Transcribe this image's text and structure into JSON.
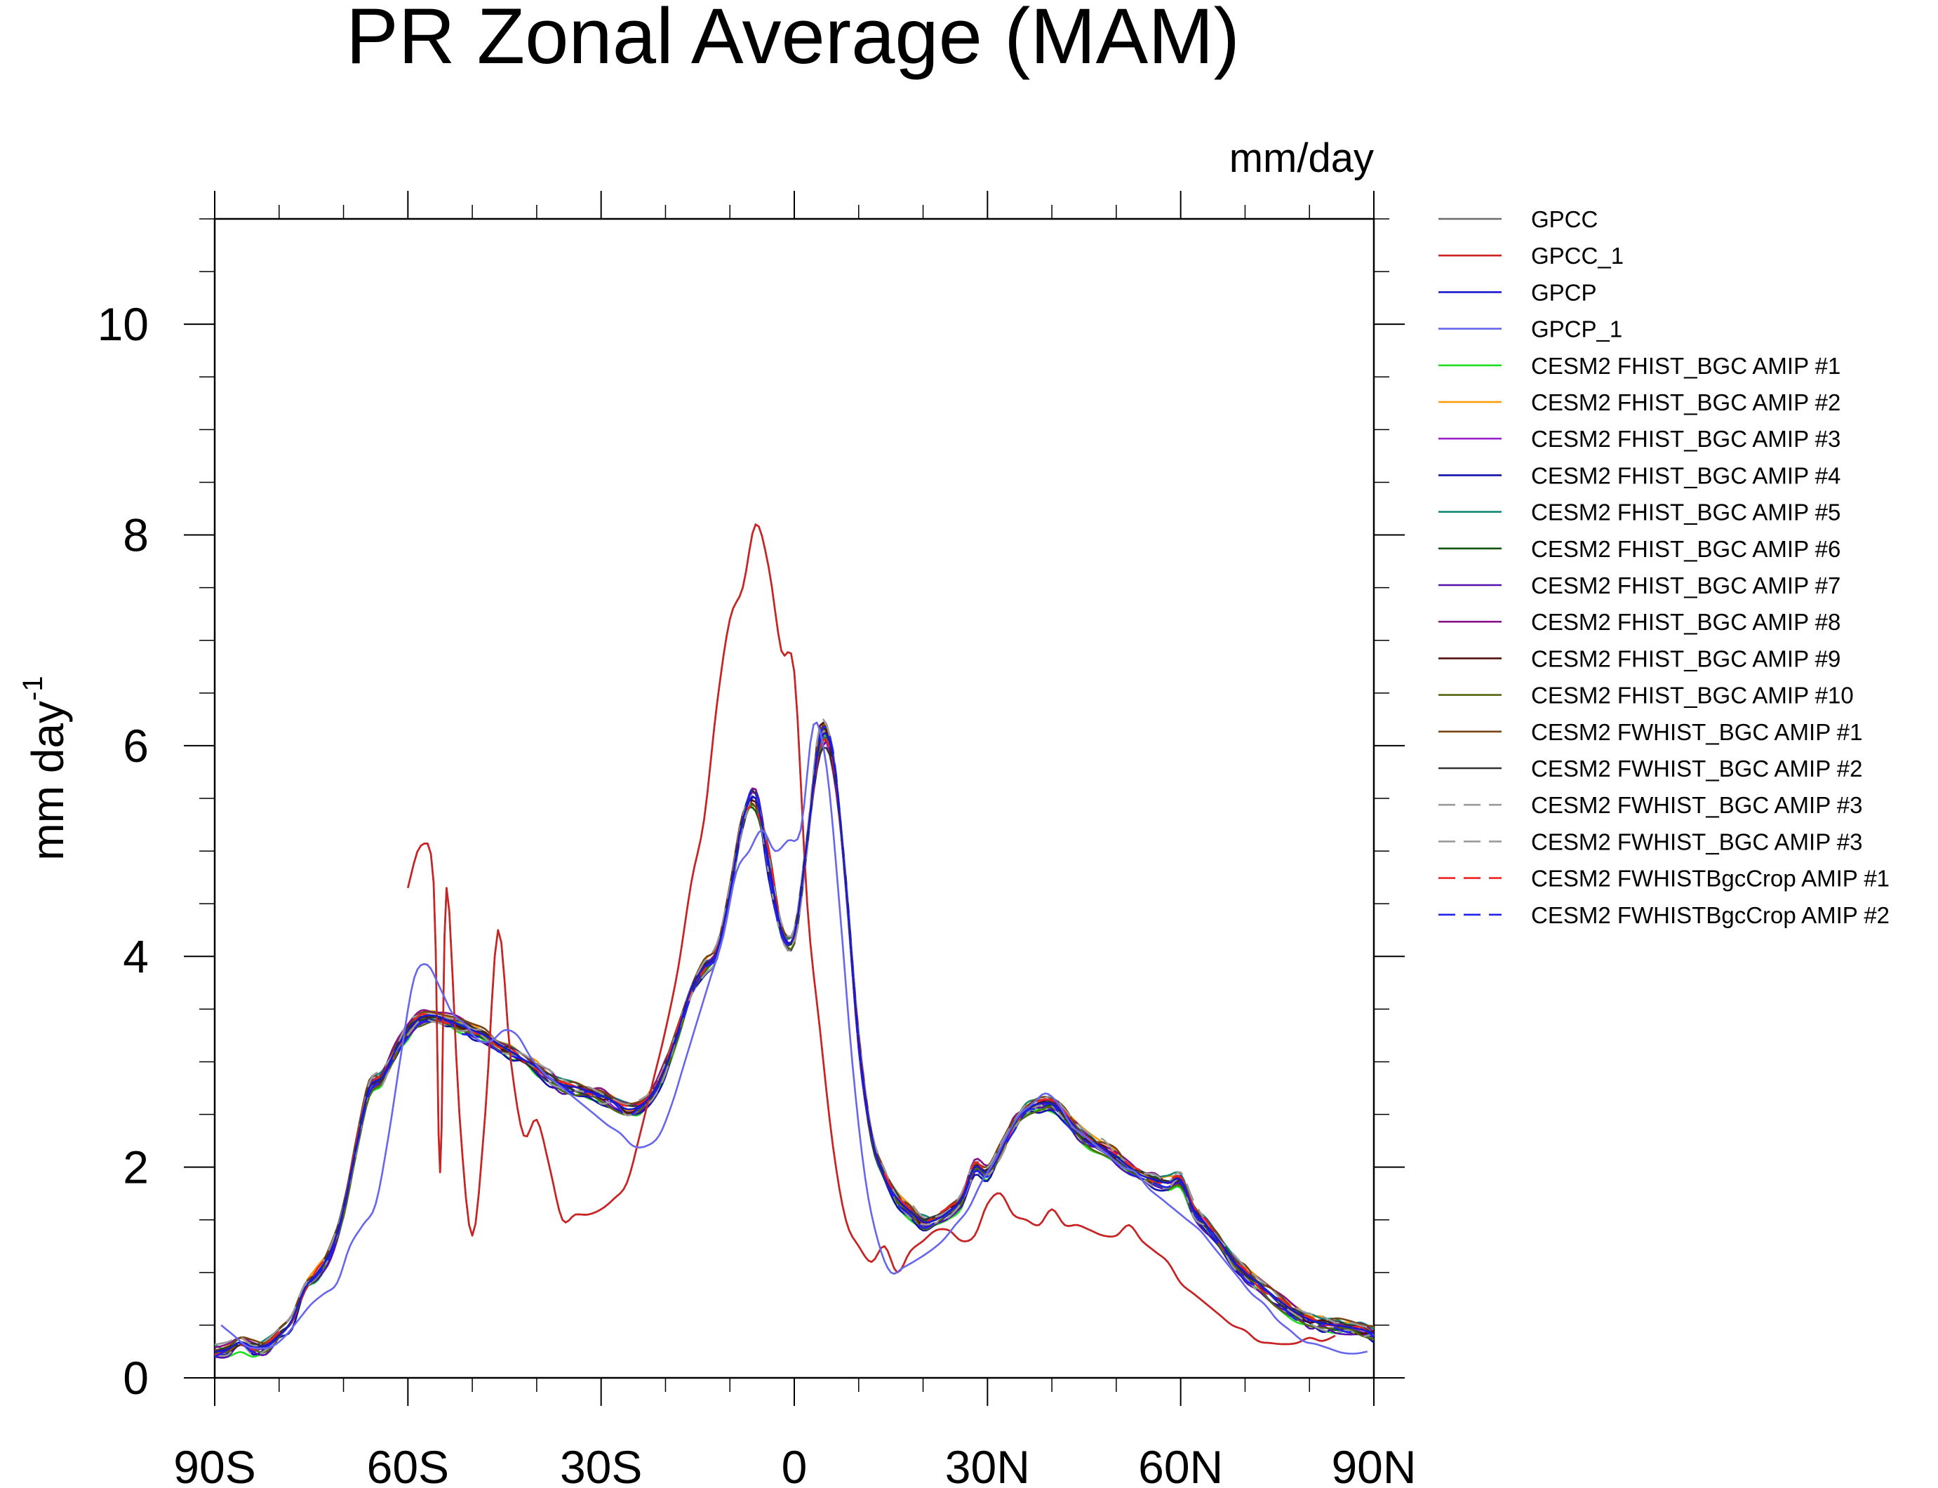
{
  "chart_data": {
    "type": "line",
    "title": "PR Zonal Average (MAM)",
    "units_label": "mm/day",
    "ylabel": "mm day",
    "ylabel_superscript": "-1",
    "xlim": [
      -90,
      90
    ],
    "ylim": [
      0,
      11
    ],
    "xticks": [
      {
        "value": -90,
        "label": "90S"
      },
      {
        "value": -60,
        "label": "60S"
      },
      {
        "value": -30,
        "label": "30S"
      },
      {
        "value": 0,
        "label": "0"
      },
      {
        "value": 30,
        "label": "30N"
      },
      {
        "value": 60,
        "label": "60N"
      },
      {
        "value": 90,
        "label": "90N"
      }
    ],
    "yticks": [
      {
        "value": 0,
        "label": "0"
      },
      {
        "value": 2,
        "label": "2"
      },
      {
        "value": 4,
        "label": "4"
      },
      {
        "value": 6,
        "label": "6"
      },
      {
        "value": 8,
        "label": "8"
      },
      {
        "value": 10,
        "label": "10"
      }
    ],
    "grid": false,
    "legend_position": "right",
    "series": [
      {
        "name": "GPCC",
        "color": "#6b6b6b",
        "dash": "solid",
        "x": [
          -60,
          -58,
          -56,
          -55,
          -54,
          -52,
          -50,
          -48,
          -46,
          -44,
          -42,
          -40,
          -38,
          -36,
          -34,
          -32,
          -30,
          -28,
          -26,
          -24,
          -22,
          -20,
          -18,
          -16,
          -14,
          -12,
          -10,
          -8,
          -6,
          -4,
          -2,
          0,
          2,
          4,
          6,
          8,
          10,
          12,
          14,
          16,
          18,
          20,
          22,
          24,
          26,
          28,
          30,
          32,
          34,
          36,
          38,
          40,
          42,
          44,
          46,
          48,
          50,
          52,
          54,
          56,
          58,
          60,
          62,
          64,
          66,
          68,
          70,
          72,
          74,
          76,
          78,
          80,
          82,
          84
        ],
        "y": [
          4.65,
          5.05,
          4.7,
          1.95,
          4.65,
          2.5,
          1.35,
          2.5,
          4.25,
          3.0,
          2.3,
          2.45,
          2.0,
          1.5,
          1.55,
          1.55,
          1.6,
          1.7,
          1.85,
          2.3,
          2.8,
          3.3,
          3.9,
          4.7,
          5.3,
          6.4,
          7.2,
          7.5,
          8.1,
          7.7,
          6.9,
          6.7,
          4.5,
          3.3,
          2.2,
          1.5,
          1.25,
          1.1,
          1.25,
          1.0,
          1.2,
          1.3,
          1.4,
          1.4,
          1.3,
          1.35,
          1.65,
          1.75,
          1.55,
          1.5,
          1.45,
          1.6,
          1.45,
          1.45,
          1.4,
          1.35,
          1.35,
          1.45,
          1.3,
          1.2,
          1.1,
          0.9,
          0.8,
          0.7,
          0.6,
          0.5,
          0.45,
          0.35,
          0.33,
          0.32,
          0.33,
          0.38,
          0.35,
          0.4
        ]
      },
      {
        "name": "GPCC_1",
        "color": "#cc2222",
        "dash": "solid",
        "x": [
          -60,
          -58,
          -56,
          -55,
          -54,
          -52,
          -50,
          -48,
          -46,
          -44,
          -42,
          -40,
          -38,
          -36,
          -34,
          -32,
          -30,
          -28,
          -26,
          -24,
          -22,
          -20,
          -18,
          -16,
          -14,
          -12,
          -10,
          -8,
          -6,
          -4,
          -2,
          0,
          2,
          4,
          6,
          8,
          10,
          12,
          14,
          16,
          18,
          20,
          22,
          24,
          26,
          28,
          30,
          32,
          34,
          36,
          38,
          40,
          42,
          44,
          46,
          48,
          50,
          52,
          54,
          56,
          58,
          60,
          62,
          64,
          66,
          68,
          70,
          72,
          74,
          76,
          78,
          80,
          82,
          84
        ],
        "y": [
          4.65,
          5.05,
          4.7,
          1.95,
          4.65,
          2.5,
          1.35,
          2.5,
          4.25,
          3.0,
          2.3,
          2.45,
          2.0,
          1.5,
          1.55,
          1.55,
          1.6,
          1.7,
          1.85,
          2.3,
          2.8,
          3.3,
          3.9,
          4.7,
          5.3,
          6.4,
          7.2,
          7.5,
          8.1,
          7.7,
          6.9,
          6.7,
          4.5,
          3.3,
          2.2,
          1.5,
          1.25,
          1.1,
          1.25,
          1.0,
          1.2,
          1.3,
          1.4,
          1.4,
          1.3,
          1.35,
          1.65,
          1.75,
          1.55,
          1.5,
          1.45,
          1.6,
          1.45,
          1.45,
          1.4,
          1.35,
          1.35,
          1.45,
          1.3,
          1.2,
          1.1,
          0.9,
          0.8,
          0.7,
          0.6,
          0.5,
          0.45,
          0.35,
          0.33,
          0.32,
          0.33,
          0.38,
          0.35,
          0.4
        ]
      },
      {
        "name": "GPCP",
        "color": "#1a1acc",
        "dash": "solid",
        "x": [
          -90,
          -88,
          -86,
          -84,
          -82,
          -80,
          -78,
          -76,
          -74,
          -72,
          -70,
          -68,
          -66,
          -64,
          -62,
          -60,
          -58,
          -56,
          -54,
          -52,
          -50,
          -48,
          -46,
          -44,
          -42,
          -40,
          -38,
          -36,
          -34,
          -32,
          -30,
          -28,
          -26,
          -24,
          -22,
          -20,
          -18,
          -16,
          -14,
          -12,
          -10,
          -8,
          -6,
          -4,
          -2,
          0,
          2,
          4,
          6,
          8,
          10,
          12,
          14,
          16,
          18,
          20,
          22,
          24,
          26,
          28,
          30,
          32,
          34,
          36,
          38,
          40,
          42,
          44,
          46,
          48,
          50,
          52,
          54,
          56,
          58,
          60,
          62,
          64,
          66,
          68,
          70,
          72,
          74,
          76,
          78,
          80,
          82,
          84,
          86,
          88,
          90
        ],
        "y": [
          0.25,
          0.27,
          0.34,
          0.29,
          0.31,
          0.4,
          0.55,
          0.85,
          1.0,
          1.2,
          1.6,
          2.2,
          2.75,
          2.85,
          3.1,
          3.3,
          3.42,
          3.44,
          3.4,
          3.35,
          3.3,
          3.25,
          3.17,
          3.1,
          3.02,
          2.95,
          2.85,
          2.78,
          2.76,
          2.72,
          2.68,
          2.62,
          2.55,
          2.58,
          2.7,
          2.95,
          3.3,
          3.7,
          3.9,
          4.05,
          4.6,
          5.3,
          5.5,
          4.9,
          4.25,
          4.2,
          5.1,
          6.05,
          5.9,
          4.7,
          3.2,
          2.3,
          1.9,
          1.7,
          1.58,
          1.48,
          1.5,
          1.58,
          1.7,
          2.0,
          1.95,
          2.15,
          2.4,
          2.55,
          2.6,
          2.6,
          2.5,
          2.35,
          2.25,
          2.18,
          2.1,
          2.0,
          1.92,
          1.88,
          1.85,
          1.88,
          1.6,
          1.45,
          1.3,
          1.12,
          1.0,
          0.9,
          0.8,
          0.7,
          0.62,
          0.55,
          0.52,
          0.5,
          0.48,
          0.46,
          0.42
        ]
      },
      {
        "name": "GPCP_1",
        "color": "#6666ee",
        "dash": "solid",
        "x": [
          -89,
          -87,
          -85,
          -83,
          -81,
          -79,
          -77,
          -75,
          -73,
          -71,
          -69,
          -67,
          -65,
          -63,
          -61,
          -59,
          -57,
          -55,
          -53,
          -51,
          -49,
          -47,
          -45,
          -43,
          -41,
          -39,
          -37,
          -35,
          -33,
          -31,
          -29,
          -27,
          -25,
          -23,
          -21,
          -19,
          -17,
          -15,
          -13,
          -11,
          -9,
          -7,
          -5,
          -3,
          -1,
          1,
          3,
          5,
          7,
          9,
          11,
          13,
          15,
          17,
          19,
          21,
          23,
          25,
          27,
          29,
          31,
          33,
          35,
          37,
          39,
          41,
          43,
          45,
          47,
          49,
          51,
          53,
          55,
          57,
          59,
          61,
          63,
          65,
          67,
          69,
          71,
          73,
          75,
          77,
          79,
          81,
          83,
          85,
          87,
          89
        ],
        "y": [
          0.5,
          0.4,
          0.3,
          0.28,
          0.3,
          0.4,
          0.55,
          0.7,
          0.8,
          0.9,
          1.25,
          1.45,
          1.65,
          2.3,
          3.1,
          3.8,
          3.92,
          3.7,
          3.45,
          3.35,
          3.2,
          3.2,
          3.3,
          3.25,
          3.05,
          2.9,
          2.8,
          2.7,
          2.6,
          2.5,
          2.4,
          2.32,
          2.2,
          2.2,
          2.3,
          2.6,
          3.0,
          3.4,
          3.8,
          4.2,
          4.8,
          5.0,
          5.2,
          5.0,
          5.1,
          5.2,
          6.2,
          5.8,
          4.5,
          3.0,
          1.9,
          1.3,
          1.0,
          1.05,
          1.12,
          1.2,
          1.3,
          1.45,
          1.6,
          1.85,
          2.05,
          2.3,
          2.5,
          2.6,
          2.7,
          2.6,
          2.4,
          2.3,
          2.2,
          2.1,
          2.0,
          1.95,
          1.8,
          1.7,
          1.6,
          1.5,
          1.4,
          1.25,
          1.1,
          0.95,
          0.8,
          0.7,
          0.55,
          0.45,
          0.35,
          0.32,
          0.28,
          0.24,
          0.23,
          0.25
        ]
      },
      {
        "name": "CESM2 FHIST_BGC AMIP #1",
        "color": "#22dd22",
        "dash": "solid"
      },
      {
        "name": "CESM2 FHIST_BGC AMIP #2",
        "color": "#ff9900",
        "dash": "solid"
      },
      {
        "name": "CESM2 FHIST_BGC AMIP #3",
        "color": "#9922cc",
        "dash": "solid"
      },
      {
        "name": "CESM2 FHIST_BGC AMIP #4",
        "color": "#1111aa",
        "dash": "solid"
      },
      {
        "name": "CESM2 FHIST_BGC AMIP #5",
        "color": "#118877",
        "dash": "solid"
      },
      {
        "name": "CESM2 FHIST_BGC AMIP #6",
        "color": "#115511",
        "dash": "solid"
      },
      {
        "name": "CESM2 FHIST_BGC AMIP #7",
        "color": "#5511aa",
        "dash": "solid"
      },
      {
        "name": "CESM2 FHIST_BGC AMIP #8",
        "color": "#881188",
        "dash": "solid"
      },
      {
        "name": "CESM2 FHIST_BGC AMIP #9",
        "color": "#551111",
        "dash": "solid"
      },
      {
        "name": "CESM2 FHIST_BGC AMIP #10",
        "color": "#556611",
        "dash": "solid"
      },
      {
        "name": "CESM2 FWHIST_BGC AMIP #1",
        "color": "#774411",
        "dash": "solid"
      },
      {
        "name": "CESM2 FWHIST_BGC AMIP #2",
        "color": "#333333",
        "dash": "solid"
      },
      {
        "name": "CESM2 FWHIST_BGC AMIP #3",
        "color": "#999999",
        "dash": "dashed"
      },
      {
        "name": "CESM2 FWHIST_BGC AMIP #3",
        "color": "#999999",
        "dash": "dashed"
      },
      {
        "name": "CESM2 FWHISTBgcCrop AMIP #1",
        "color": "#ee2222",
        "dash": "dashed"
      },
      {
        "name": "CESM2 FWHISTBgcCrop AMIP #2",
        "color": "#2222ee",
        "dash": "dashed"
      }
    ]
  }
}
